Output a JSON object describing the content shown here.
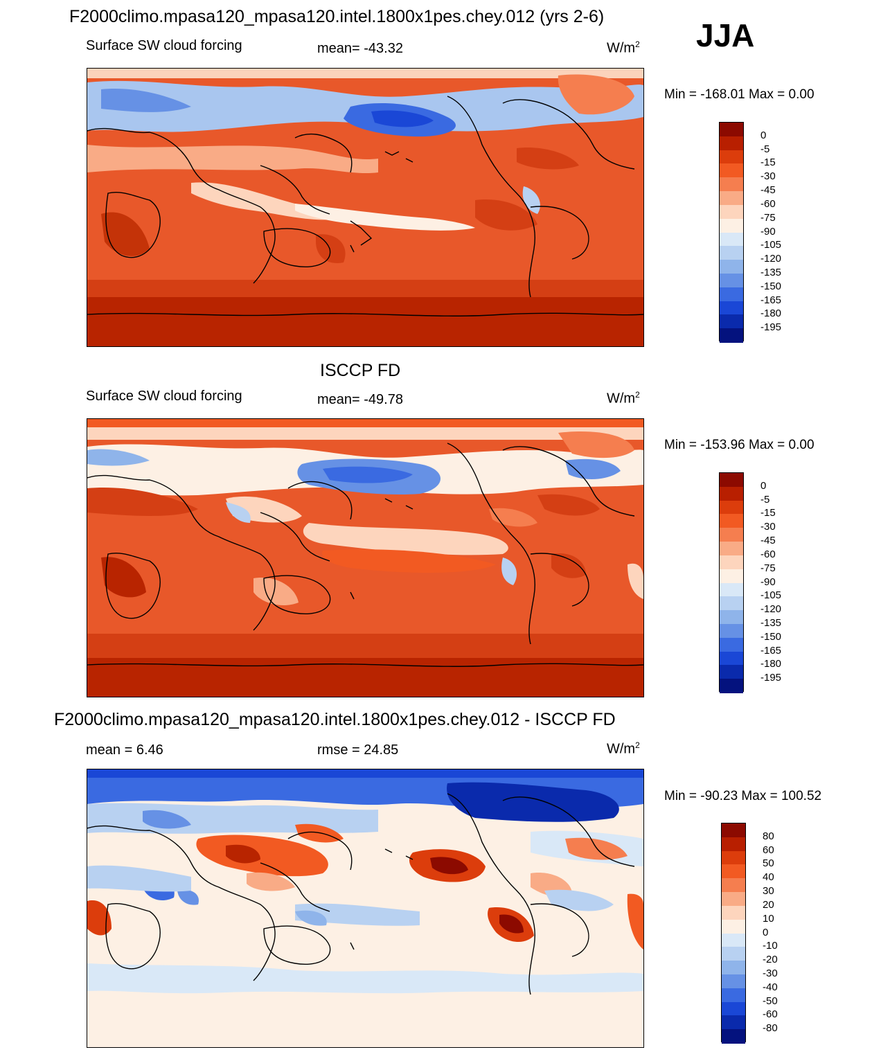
{
  "season": "JJA",
  "colors": {
    "cf_palette": [
      "#8c0a00",
      "#b81f00",
      "#dc3d0c",
      "#f25a22",
      "#f57e4f",
      "#f9ab86",
      "#fdd5bd",
      "#fdf0e4",
      "#d9e8f7",
      "#b8d1f1",
      "#8fb4ea",
      "#6691e5",
      "#3a6ae1",
      "#1a47d6",
      "#0a2aac",
      "#04127e"
    ],
    "diff_palette": [
      "#8c0a00",
      "#b81f00",
      "#dc3d0c",
      "#f25a22",
      "#f57e4f",
      "#f9ab86",
      "#fdd5bd",
      "#fdf0e4",
      "#d9e8f7",
      "#b8d1f1",
      "#8fb4ea",
      "#6691e5",
      "#3a6ae1",
      "#1a47d6",
      "#0a2aac",
      "#04127e"
    ],
    "coast": "#000000"
  },
  "panels": [
    {
      "id": "model",
      "title": "F2000climo.mpasa120_mpasa120.intel.1800x1pes.chey.012 (yrs 2-6)",
      "left_label": "Surface SW cloud forcing",
      "center_label": "mean= -43.32",
      "units": "W/m",
      "units_exp": "2",
      "minmax": "Min = -168.01 Max =    0.00",
      "levels": [
        "0",
        "-5",
        "-15",
        "-30",
        "-45",
        "-60",
        "-75",
        "-90",
        "-105",
        "-120",
        "-135",
        "-150",
        "-165",
        "-180",
        "-195"
      ]
    },
    {
      "id": "obs",
      "title": "ISCCP FD",
      "left_label": "Surface SW cloud forcing",
      "center_label": "mean= -49.78",
      "units": "W/m",
      "units_exp": "2",
      "minmax": "Min = -153.96 Max =    0.00",
      "levels": [
        "0",
        "-5",
        "-15",
        "-30",
        "-45",
        "-60",
        "-75",
        "-90",
        "-105",
        "-120",
        "-135",
        "-150",
        "-165",
        "-180",
        "-195"
      ]
    },
    {
      "id": "diff",
      "title": "F2000climo.mpasa120_mpasa120.intel.1800x1pes.chey.012 - ISCCP FD",
      "left_label": "mean =   6.46",
      "center_label": "rmse =  24.85",
      "units": "W/m",
      "units_exp": "2",
      "minmax": "Min = -90.23 Max = 100.52",
      "levels": [
        "80",
        "60",
        "50",
        "40",
        "30",
        "20",
        "10",
        "0",
        "-10",
        "-20",
        "-30",
        "-40",
        "-50",
        "-60",
        "-80"
      ]
    }
  ]
}
